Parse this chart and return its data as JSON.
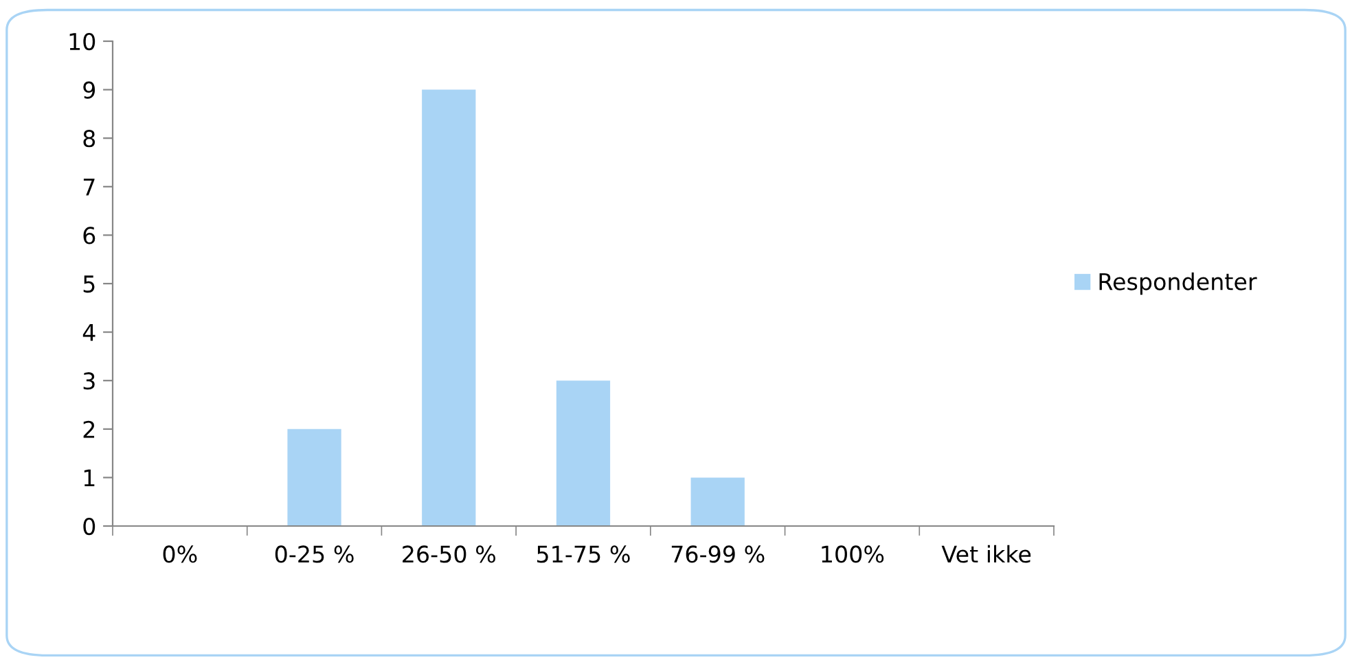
{
  "chart_data": {
    "type": "bar",
    "categories": [
      "0%",
      "0-25 %",
      "26-50 %",
      "51-75 %",
      "76-99 %",
      "100%",
      "Vet ikke"
    ],
    "series": [
      {
        "name": "Respondenter",
        "color": "#a9d4f5",
        "values": [
          0,
          2,
          9,
          3,
          1,
          0,
          0
        ]
      }
    ],
    "ylim": [
      0,
      10
    ],
    "yticks": [
      0,
      1,
      2,
      3,
      4,
      5,
      6,
      7,
      8,
      9,
      10
    ],
    "grid": false,
    "legend": "right"
  }
}
